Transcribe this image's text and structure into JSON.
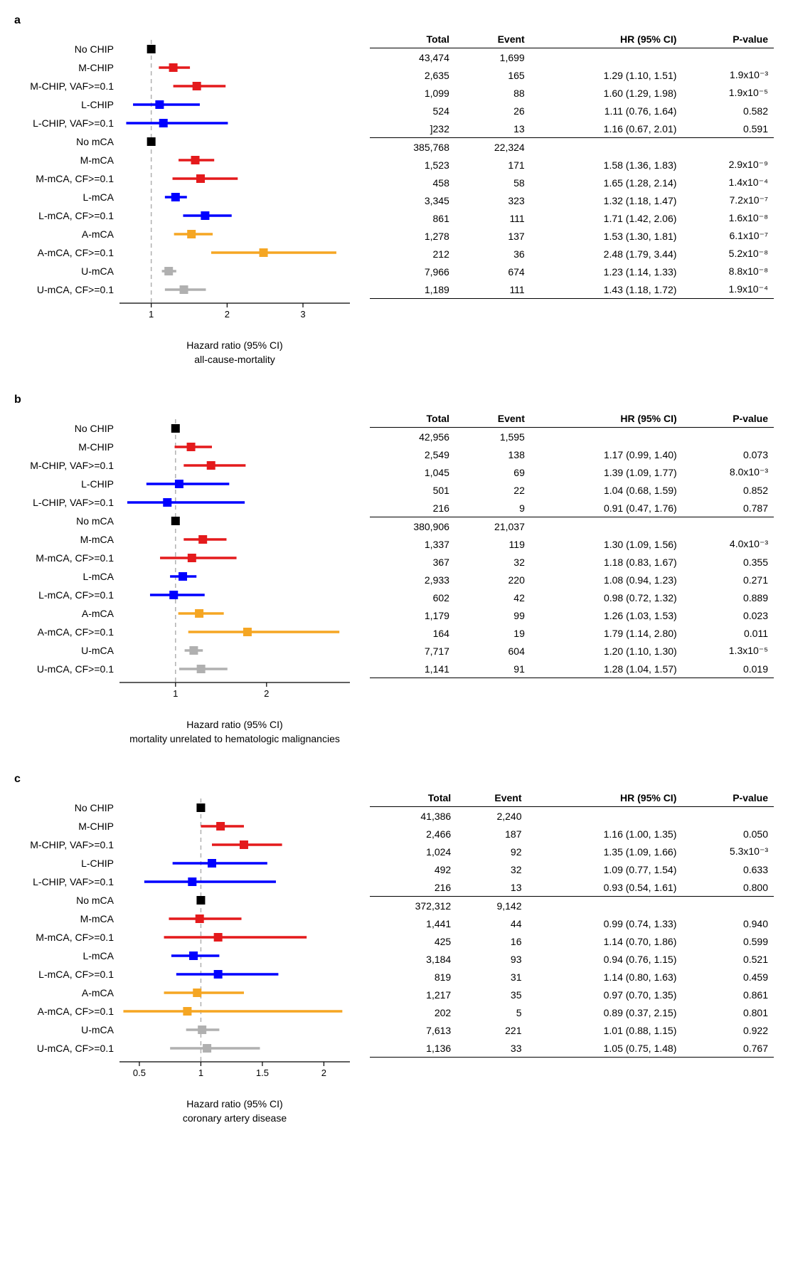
{
  "colors": {
    "black": "#000000",
    "red": "#e41a1c",
    "blue": "#0000ff",
    "orange": "#f5a623",
    "gray": "#b0b0b0",
    "ref_line": "#b0b0b0"
  },
  "columns": [
    "Total",
    "Event",
    "HR (95% CI)",
    "P-value"
  ],
  "marker_size": 12,
  "line_width": 3.5,
  "panels": [
    {
      "id": "a",
      "xlabel1": "Hazard ratio (95% CI)",
      "xlabel2": "all-cause-mortality",
      "xmin": 0.6,
      "xmax": 3.6,
      "ticks": [
        1,
        2,
        3
      ],
      "rows": [
        {
          "label": "No CHIP",
          "color": "black",
          "hr": 1.0,
          "lo": null,
          "hi": null,
          "total": "43,474",
          "event": "1,699",
          "hr_txt": "",
          "p": ""
        },
        {
          "label": "M-CHIP",
          "color": "red",
          "hr": 1.29,
          "lo": 1.1,
          "hi": 1.51,
          "total": "2,635",
          "event": "165",
          "hr_txt": "1.29 (1.10, 1.51)",
          "p": "1.9x10⁻³"
        },
        {
          "label": "M-CHIP, VAF>=0.1",
          "color": "red",
          "hr": 1.6,
          "lo": 1.29,
          "hi": 1.98,
          "total": "1,099",
          "event": "88",
          "hr_txt": "1.60 (1.29, 1.98)",
          "p": "1.9x10⁻⁵"
        },
        {
          "label": "L-CHIP",
          "color": "blue",
          "hr": 1.11,
          "lo": 0.76,
          "hi": 1.64,
          "total": "524",
          "event": "26",
          "hr_txt": "1.11 (0.76, 1.64)",
          "p": "0.582"
        },
        {
          "label": "L-CHIP, VAF>=0.1",
          "color": "blue",
          "hr": 1.16,
          "lo": 0.67,
          "hi": 2.01,
          "total": "]232",
          "event": "13",
          "hr_txt": "1.16 (0.67, 2.01)",
          "p": "0.591"
        },
        {
          "label": "No mCA",
          "color": "black",
          "hr": 1.0,
          "lo": null,
          "hi": null,
          "total": "385,768",
          "event": "22,324",
          "hr_txt": "",
          "p": "",
          "sep": true
        },
        {
          "label": "M-mCA",
          "color": "red",
          "hr": 1.58,
          "lo": 1.36,
          "hi": 1.83,
          "total": "1,523",
          "event": "171",
          "hr_txt": "1.58 (1.36, 1.83)",
          "p": "2.9x10⁻⁹"
        },
        {
          "label": "M-mCA, CF>=0.1",
          "color": "red",
          "hr": 1.65,
          "lo": 1.28,
          "hi": 2.14,
          "total": "458",
          "event": "58",
          "hr_txt": "1.65 (1.28, 2.14)",
          "p": "1.4x10⁻⁴"
        },
        {
          "label": "L-mCA",
          "color": "blue",
          "hr": 1.32,
          "lo": 1.18,
          "hi": 1.47,
          "total": "3,345",
          "event": "323",
          "hr_txt": "1.32 (1.18, 1.47)",
          "p": "7.2x10⁻⁷"
        },
        {
          "label": "L-mCA, CF>=0.1",
          "color": "blue",
          "hr": 1.71,
          "lo": 1.42,
          "hi": 2.06,
          "total": "861",
          "event": "111",
          "hr_txt": "1.71 (1.42, 2.06)",
          "p": "1.6x10⁻⁸"
        },
        {
          "label": "A-mCA",
          "color": "orange",
          "hr": 1.53,
          "lo": 1.3,
          "hi": 1.81,
          "total": "1,278",
          "event": "137",
          "hr_txt": "1.53 (1.30, 1.81)",
          "p": "6.1x10⁻⁷"
        },
        {
          "label": "A-mCA, CF>=0.1",
          "color": "orange",
          "hr": 2.48,
          "lo": 1.79,
          "hi": 3.44,
          "total": "212",
          "event": "36",
          "hr_txt": "2.48 (1.79, 3.44)",
          "p": "5.2x10⁻⁸"
        },
        {
          "label": "U-mCA",
          "color": "gray",
          "hr": 1.23,
          "lo": 1.14,
          "hi": 1.33,
          "total": "7,966",
          "event": "674",
          "hr_txt": "1.23 (1.14, 1.33)",
          "p": "8.8x10⁻⁸"
        },
        {
          "label": "U-mCA, CF>=0.1",
          "color": "gray",
          "hr": 1.43,
          "lo": 1.18,
          "hi": 1.72,
          "total": "1,189",
          "event": "111",
          "hr_txt": "1.43 (1.18, 1.72)",
          "p": "1.9x10⁻⁴",
          "last": true
        }
      ]
    },
    {
      "id": "b",
      "xlabel1": "Hazard ratio (95% CI)",
      "xlabel2": "mortality unrelated to hematologic malignancies",
      "xmin": 0.4,
      "xmax": 2.9,
      "ticks": [
        1,
        2
      ],
      "rows": [
        {
          "label": "No CHIP",
          "color": "black",
          "hr": 1.0,
          "lo": null,
          "hi": null,
          "total": "42,956",
          "event": "1,595",
          "hr_txt": "",
          "p": ""
        },
        {
          "label": "M-CHIP",
          "color": "red",
          "hr": 1.17,
          "lo": 0.99,
          "hi": 1.4,
          "total": "2,549",
          "event": "138",
          "hr_txt": "1.17 (0.99, 1.40)",
          "p": "0.073"
        },
        {
          "label": "M-CHIP, VAF>=0.1",
          "color": "red",
          "hr": 1.39,
          "lo": 1.09,
          "hi": 1.77,
          "total": "1,045",
          "event": "69",
          "hr_txt": "1.39 (1.09, 1.77)",
          "p": "8.0x10⁻³"
        },
        {
          "label": "L-CHIP",
          "color": "blue",
          "hr": 1.04,
          "lo": 0.68,
          "hi": 1.59,
          "total": "501",
          "event": "22",
          "hr_txt": "1.04 (0.68, 1.59)",
          "p": "0.852"
        },
        {
          "label": "L-CHIP, VAF>=0.1",
          "color": "blue",
          "hr": 0.91,
          "lo": 0.47,
          "hi": 1.76,
          "total": "216",
          "event": "9",
          "hr_txt": "0.91 (0.47, 1.76)",
          "p": "0.787"
        },
        {
          "label": "No mCA",
          "color": "black",
          "hr": 1.0,
          "lo": null,
          "hi": null,
          "total": "380,906",
          "event": "21,037",
          "hr_txt": "",
          "p": "",
          "sep": true
        },
        {
          "label": "M-mCA",
          "color": "red",
          "hr": 1.3,
          "lo": 1.09,
          "hi": 1.56,
          "total": "1,337",
          "event": "119",
          "hr_txt": "1.30 (1.09, 1.56)",
          "p": "4.0x10⁻³"
        },
        {
          "label": "M-mCA, CF>=0.1",
          "color": "red",
          "hr": 1.18,
          "lo": 0.83,
          "hi": 1.67,
          "total": "367",
          "event": "32",
          "hr_txt": "1.18 (0.83, 1.67)",
          "p": "0.355"
        },
        {
          "label": "L-mCA",
          "color": "blue",
          "hr": 1.08,
          "lo": 0.94,
          "hi": 1.23,
          "total": "2,933",
          "event": "220",
          "hr_txt": "1.08 (0.94, 1.23)",
          "p": "0.271"
        },
        {
          "label": "L-mCA, CF>=0.1",
          "color": "blue",
          "hr": 0.98,
          "lo": 0.72,
          "hi": 1.32,
          "total": "602",
          "event": "42",
          "hr_txt": "0.98 (0.72, 1.32)",
          "p": "0.889"
        },
        {
          "label": "A-mCA",
          "color": "orange",
          "hr": 1.26,
          "lo": 1.03,
          "hi": 1.53,
          "total": "1,179",
          "event": "99",
          "hr_txt": "1.26 (1.03, 1.53)",
          "p": "0.023"
        },
        {
          "label": "A-mCA, CF>=0.1",
          "color": "orange",
          "hr": 1.79,
          "lo": 1.14,
          "hi": 2.8,
          "total": "164",
          "event": "19",
          "hr_txt": "1.79 (1.14, 2.80)",
          "p": "0.011"
        },
        {
          "label": "U-mCA",
          "color": "gray",
          "hr": 1.2,
          "lo": 1.1,
          "hi": 1.3,
          "total": "7,717",
          "event": "604",
          "hr_txt": "1.20 (1.10, 1.30)",
          "p": "1.3x10⁻⁵"
        },
        {
          "label": "U-mCA, CF>=0.1",
          "color": "gray",
          "hr": 1.28,
          "lo": 1.04,
          "hi": 1.57,
          "total": "1,141",
          "event": "91",
          "hr_txt": "1.28 (1.04, 1.57)",
          "p": "0.019",
          "last": true
        }
      ]
    },
    {
      "id": "c",
      "xlabel1": "Hazard ratio (95% CI)",
      "xlabel2": "coronary artery disease",
      "xmin": 0.35,
      "xmax": 2.2,
      "ticks": [
        0.5,
        1.0,
        1.5,
        2.0
      ],
      "rows": [
        {
          "label": "No CHIP",
          "color": "black",
          "hr": 1.0,
          "lo": null,
          "hi": null,
          "total": "41,386",
          "event": "2,240",
          "hr_txt": "",
          "p": ""
        },
        {
          "label": "M-CHIP",
          "color": "red",
          "hr": 1.16,
          "lo": 1.0,
          "hi": 1.35,
          "total": "2,466",
          "event": "187",
          "hr_txt": "1.16 (1.00, 1.35)",
          "p": "0.050"
        },
        {
          "label": "M-CHIP, VAF>=0.1",
          "color": "red",
          "hr": 1.35,
          "lo": 1.09,
          "hi": 1.66,
          "total": "1,024",
          "event": "92",
          "hr_txt": "1.35 (1.09, 1.66)",
          "p": "5.3x10⁻³"
        },
        {
          "label": "L-CHIP",
          "color": "blue",
          "hr": 1.09,
          "lo": 0.77,
          "hi": 1.54,
          "total": "492",
          "event": "32",
          "hr_txt": "1.09 (0.77, 1.54)",
          "p": "0.633"
        },
        {
          "label": "L-CHIP, VAF>=0.1",
          "color": "blue",
          "hr": 0.93,
          "lo": 0.54,
          "hi": 1.61,
          "total": "216",
          "event": "13",
          "hr_txt": "0.93 (0.54, 1.61)",
          "p": "0.800"
        },
        {
          "label": "No mCA",
          "color": "black",
          "hr": 1.0,
          "lo": null,
          "hi": null,
          "total": "372,312",
          "event": "9,142",
          "hr_txt": "",
          "p": "",
          "sep": true
        },
        {
          "label": "M-mCA",
          "color": "red",
          "hr": 0.99,
          "lo": 0.74,
          "hi": 1.33,
          "total": "1,441",
          "event": "44",
          "hr_txt": "0.99 (0.74, 1.33)",
          "p": "0.940"
        },
        {
          "label": "M-mCA, CF>=0.1",
          "color": "red",
          "hr": 1.14,
          "lo": 0.7,
          "hi": 1.86,
          "total": "425",
          "event": "16",
          "hr_txt": "1.14 (0.70, 1.86)",
          "p": "0.599"
        },
        {
          "label": "L-mCA",
          "color": "blue",
          "hr": 0.94,
          "lo": 0.76,
          "hi": 1.15,
          "total": "3,184",
          "event": "93",
          "hr_txt": "0.94 (0.76, 1.15)",
          "p": "0.521"
        },
        {
          "label": "L-mCA, CF>=0.1",
          "color": "blue",
          "hr": 1.14,
          "lo": 0.8,
          "hi": 1.63,
          "total": "819",
          "event": "31",
          "hr_txt": "1.14 (0.80, 1.63)",
          "p": "0.459"
        },
        {
          "label": "A-mCA",
          "color": "orange",
          "hr": 0.97,
          "lo": 0.7,
          "hi": 1.35,
          "total": "1,217",
          "event": "35",
          "hr_txt": "0.97 (0.70, 1.35)",
          "p": "0.861"
        },
        {
          "label": "A-mCA, CF>=0.1",
          "color": "orange",
          "hr": 0.89,
          "lo": 0.37,
          "hi": 2.15,
          "total": "202",
          "event": "5",
          "hr_txt": "0.89 (0.37, 2.15)",
          "p": "0.801"
        },
        {
          "label": "U-mCA",
          "color": "gray",
          "hr": 1.01,
          "lo": 0.88,
          "hi": 1.15,
          "total": "7,613",
          "event": "221",
          "hr_txt": "1.01 (0.88, 1.15)",
          "p": "0.922"
        },
        {
          "label": "U-mCA, CF>=0.1",
          "color": "gray",
          "hr": 1.05,
          "lo": 0.75,
          "hi": 1.48,
          "total": "1,136",
          "event": "33",
          "hr_txt": "1.05 (0.75, 1.48)",
          "p": "0.767",
          "last": true
        }
      ]
    }
  ]
}
